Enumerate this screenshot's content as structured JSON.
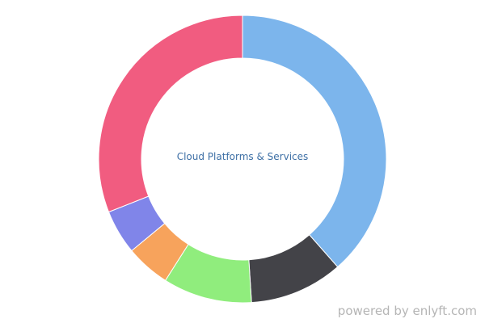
{
  "chart_data": {
    "type": "pie",
    "center_label": "Cloud Platforms & Services",
    "slices": [
      {
        "value": 38.5,
        "color": "#7cb5ec"
      },
      {
        "value": 10.5,
        "color": "#434348"
      },
      {
        "value": 10.0,
        "color": "#90ed7d"
      },
      {
        "value": 5.0,
        "color": "#f7a35c"
      },
      {
        "value": 5.0,
        "color": "#8085e9"
      },
      {
        "value": 31.0,
        "color": "#f15c80"
      }
    ],
    "label_color": "#3d6fa5"
  },
  "footer": {
    "credit": "powered by enlyft.com"
  }
}
